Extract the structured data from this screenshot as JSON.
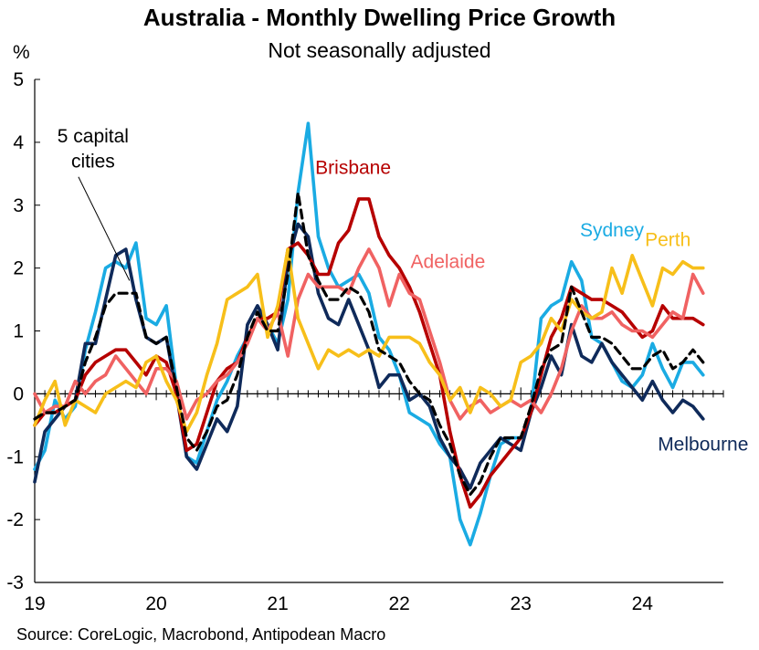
{
  "title": "Australia - Monthly Dwelling Price Growth",
  "subtitle": "Not seasonally adjusted",
  "source": "Source: CoreLogic, Macrobond, Antipodean Macro",
  "chart_data": {
    "type": "line",
    "ylabel": "%",
    "ylim": [
      -3,
      5
    ],
    "yticks": [
      "5",
      "4",
      "3",
      "2",
      "1",
      "0",
      "-1",
      "-2",
      "-3"
    ],
    "xlim": [
      2019.0,
      2024.6667
    ],
    "xticks": [
      {
        "value": 2019,
        "label": "19"
      },
      {
        "value": 2020,
        "label": "20"
      },
      {
        "value": 2021,
        "label": "21"
      },
      {
        "value": 2022,
        "label": "22"
      },
      {
        "value": 2023,
        "label": "23"
      },
      {
        "value": 2024,
        "label": "24"
      }
    ],
    "grid": false,
    "x_start": "2019-01",
    "x_step_months": 1,
    "series": [
      {
        "name": "Sydney",
        "color": "#1aabe3",
        "values": [
          -1.2,
          -0.9,
          -0.1,
          -0.4,
          -0.2,
          0.7,
          1.3,
          2.0,
          2.1,
          2.0,
          2.4,
          1.2,
          1.1,
          1.4,
          0.1,
          -1.0,
          -1.1,
          -0.6,
          -0.1,
          0.2,
          0.6,
          0.9,
          1.2,
          1.1,
          0.8,
          1.5,
          3.2,
          4.3,
          2.5,
          2.0,
          1.7,
          1.8,
          1.9,
          1.6,
          0.9,
          0.7,
          0.3,
          -0.3,
          -0.4,
          -0.5,
          -0.8,
          -1.0,
          -2.0,
          -2.4,
          -1.9,
          -1.3,
          -0.8,
          -0.7,
          -0.7,
          -0.3,
          1.2,
          1.4,
          1.5,
          2.1,
          1.8,
          0.9,
          0.8,
          0.5,
          0.2,
          0.1,
          0.3,
          0.8,
          0.4,
          0.1,
          0.5,
          0.5,
          0.3
        ]
      },
      {
        "name": "Melbourne",
        "color": "#0f2a5a",
        "values": [
          -1.4,
          -0.6,
          -0.4,
          -0.2,
          -0.1,
          0.8,
          0.8,
          1.5,
          2.2,
          2.3,
          1.5,
          0.9,
          0.8,
          0.9,
          0.0,
          -1.0,
          -1.2,
          -0.8,
          -0.4,
          -0.6,
          -0.2,
          1.1,
          1.4,
          1.1,
          0.7,
          2.1,
          2.7,
          2.5,
          1.6,
          1.2,
          1.1,
          1.5,
          1.1,
          0.7,
          0.1,
          0.3,
          0.3,
          -0.1,
          0.0,
          -0.2,
          -0.7,
          -1.0,
          -1.2,
          -1.5,
          -1.1,
          -0.9,
          -0.7,
          -0.8,
          -0.9,
          -0.3,
          0.1,
          0.6,
          0.3,
          1.1,
          0.6,
          0.5,
          0.8,
          0.5,
          0.3,
          0.1,
          -0.1,
          0.2,
          -0.1,
          -0.3,
          -0.1,
          -0.2,
          -0.4
        ]
      },
      {
        "name": "Brisbane",
        "color": "#b60000",
        "values": [
          -0.5,
          -0.3,
          -0.3,
          -0.2,
          -0.1,
          0.3,
          0.5,
          0.6,
          0.7,
          0.7,
          0.5,
          0.3,
          0.6,
          0.5,
          0.0,
          -0.9,
          -0.8,
          -0.3,
          0.2,
          0.4,
          0.5,
          0.9,
          1.2,
          1.2,
          1.3,
          2.3,
          2.4,
          2.2,
          1.9,
          1.9,
          2.4,
          2.6,
          3.1,
          3.1,
          2.5,
          2.2,
          2.0,
          1.7,
          1.3,
          0.8,
          0.3,
          -0.6,
          -1.3,
          -1.8,
          -1.6,
          -1.3,
          -1.1,
          -0.9,
          -0.7,
          -0.3,
          0.3,
          0.9,
          1.2,
          1.7,
          1.6,
          1.5,
          1.5,
          1.4,
          1.3,
          1.1,
          0.9,
          1.0,
          1.4,
          1.2,
          1.2,
          1.2,
          1.1
        ]
      },
      {
        "name": "Adelaide",
        "color": "#f06262",
        "values": [
          0.0,
          -0.3,
          -0.2,
          -0.2,
          0.2,
          0.0,
          0.2,
          0.3,
          0.6,
          0.4,
          0.2,
          0.0,
          0.4,
          0.4,
          0.2,
          -0.4,
          -0.1,
          0.0,
          0.2,
          0.3,
          0.5,
          0.8,
          1.2,
          1.0,
          1.3,
          0.6,
          1.5,
          1.9,
          1.7,
          1.7,
          1.7,
          1.6,
          2.0,
          2.3,
          2.0,
          1.4,
          1.9,
          1.6,
          1.5,
          1.0,
          0.5,
          -0.1,
          -0.4,
          -0.2,
          -0.1,
          -0.3,
          -0.2,
          -0.1,
          -0.2,
          -0.1,
          -0.3,
          0.0,
          0.4,
          1.0,
          1.4,
          1.2,
          1.2,
          1.3,
          1.1,
          1.0,
          1.0,
          0.9,
          1.1,
          1.3,
          1.2,
          1.9,
          1.6
        ]
      },
      {
        "name": "Perth",
        "color": "#f7bf1a",
        "values": [
          -0.5,
          -0.1,
          0.2,
          -0.5,
          -0.1,
          -0.2,
          -0.3,
          0.0,
          0.1,
          0.2,
          0.1,
          0.5,
          0.6,
          0.2,
          -0.1,
          -0.6,
          -0.3,
          0.3,
          0.8,
          1.5,
          1.6,
          1.7,
          1.9,
          0.9,
          1.4,
          2.3,
          1.2,
          0.8,
          0.4,
          0.7,
          0.6,
          0.7,
          0.6,
          0.7,
          0.6,
          0.9,
          0.9,
          0.9,
          0.8,
          0.5,
          0.3,
          -0.1,
          0.1,
          -0.3,
          0.1,
          0.0,
          -0.2,
          -0.1,
          0.5,
          0.6,
          0.8,
          1.2,
          1.0,
          1.5,
          1.3,
          1.2,
          1.3,
          2.0,
          1.6,
          2.2,
          1.8,
          1.4,
          2.0,
          1.9,
          2.1,
          2.0,
          2.0
        ]
      },
      {
        "name": "5 capital cities",
        "color": "#000000",
        "dashed": true,
        "values": [
          -0.4,
          -0.3,
          -0.3,
          -0.2,
          -0.1,
          0.5,
          0.9,
          1.4,
          1.6,
          1.6,
          1.6,
          0.9,
          0.8,
          0.9,
          0.1,
          -0.7,
          -0.9,
          -0.6,
          -0.2,
          -0.1,
          0.3,
          0.9,
          1.3,
          1.0,
          1.0,
          1.9,
          3.2,
          2.2,
          1.8,
          1.5,
          1.5,
          1.7,
          1.6,
          1.3,
          0.7,
          0.6,
          0.5,
          0.2,
          0.0,
          -0.1,
          -0.5,
          -0.8,
          -1.3,
          -1.6,
          -1.4,
          -1.0,
          -0.7,
          -0.7,
          -0.7,
          -0.2,
          0.4,
          0.7,
          0.8,
          1.7,
          1.3,
          0.9,
          0.9,
          0.8,
          0.6,
          0.4,
          0.4,
          0.6,
          0.7,
          0.4,
          0.5,
          0.7,
          0.5
        ]
      }
    ],
    "annotations": [
      {
        "series": "Sydney",
        "text": "Sydney",
        "x": 2023.75,
        "y": 2.5
      },
      {
        "series": "Perth",
        "text": "Perth",
        "x": 2024.21,
        "y": 2.35
      },
      {
        "series": "Brisbane",
        "text": "Brisbane",
        "x": 2021.62,
        "y": 3.5
      },
      {
        "series": "Adelaide",
        "text": "Adelaide",
        "x": 2022.4,
        "y": 2.0
      },
      {
        "series": "Melbourne",
        "text": "Melbourne",
        "x": 2024.5,
        "y": -0.9
      },
      {
        "series": "5 capital cities",
        "text": "5 capital",
        "x": 2019.48,
        "y": 4.0
      },
      {
        "series": "5 capital cities",
        "text": "cities",
        "x": 2019.48,
        "y": 3.6
      }
    ]
  }
}
